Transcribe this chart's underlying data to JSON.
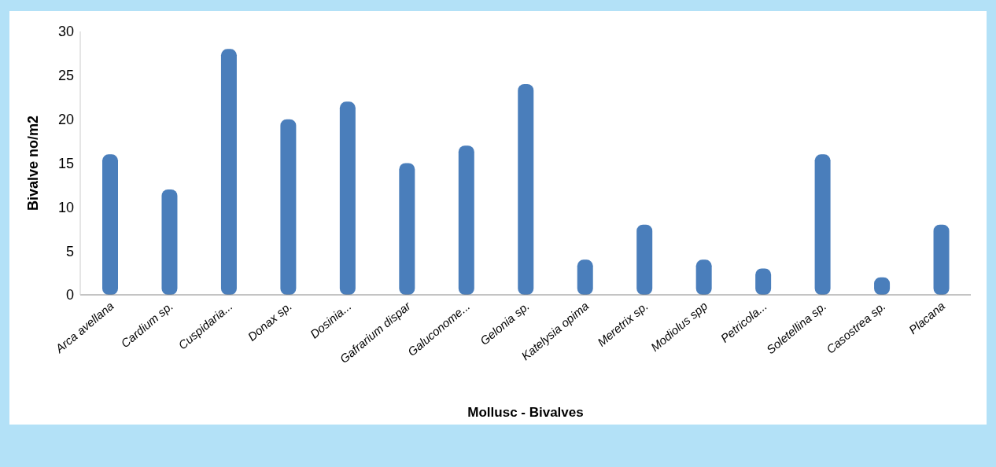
{
  "chart_data": {
    "type": "bar",
    "xlabel": "Mollusc - Bivalves",
    "ylabel": "Bivalve no/m2",
    "categories": [
      "Arca avellana",
      "Cardium sp.",
      "Cuspidaria...",
      "Donax sp.",
      "Dosinia...",
      "Gafrarium dispar",
      "Galuconome...",
      "Gelonia sp.",
      "Katelysia opima",
      "Meretrix sp.",
      "Modiolus spp",
      "Petricola...",
      "Soletellina sp.",
      "Casostrea sp.",
      "Placana"
    ],
    "values": [
      16,
      12,
      28,
      20,
      22,
      15,
      17,
      24,
      4,
      8,
      4,
      3,
      16,
      2,
      8
    ],
    "color": "#4a7ebb",
    "ylim": [
      0,
      30
    ],
    "yticks": [
      0,
      5,
      10,
      15,
      20,
      25,
      30
    ],
    "grid": false
  }
}
